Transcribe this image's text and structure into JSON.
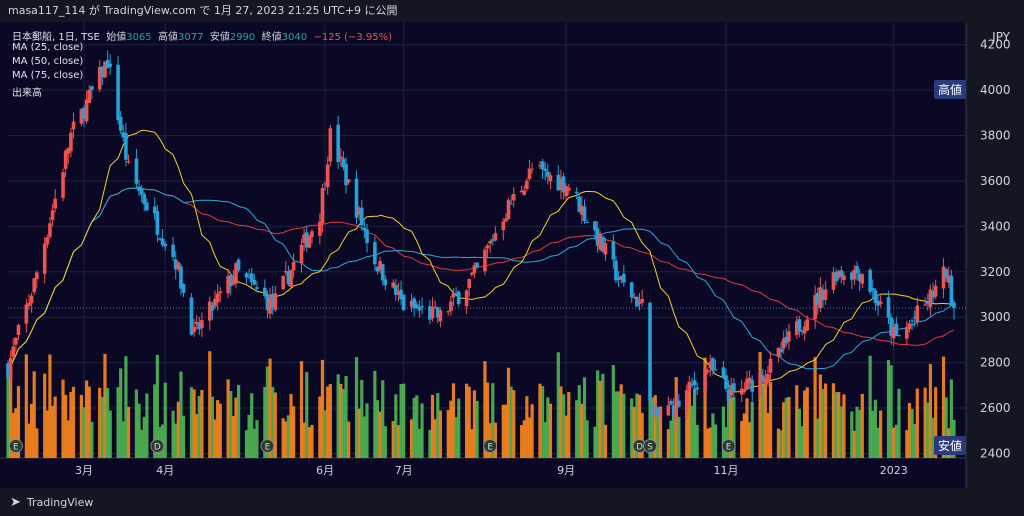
{
  "header": {
    "text": "masa117_114 が TradingView.com で 1月 27, 2023 21:25 UTC+9 に公開"
  },
  "legend": {
    "symbol": "日本郵船, 1日, TSE",
    "open_label": "始値",
    "open_value": "3065",
    "high_label": "高値",
    "high_value": "3077",
    "low_label": "安値",
    "low_value": "2990",
    "close_label": "終値",
    "close_value": "3040",
    "change": "−125 (−3.95%)",
    "ma25": "MA (25, close)",
    "ma50": "MA (50, close)",
    "ma75": "MA (75, close)",
    "volume": "出来高"
  },
  "axis": {
    "currency": "JPY"
  },
  "tags": {
    "high": "高値",
    "low": "安値"
  },
  "footer": {
    "brand": "TradingView"
  },
  "colors": {
    "up": "#ef5350",
    "down": "#26a0d8",
    "vol_up": "#f0821e",
    "vol_down": "#4caf50",
    "ma25": "#f2d024",
    "ma50": "#2ea8d8",
    "ma75": "#e03a3a"
  },
  "chart_data": {
    "type": "candlestick",
    "ylim": [
      2380,
      4300
    ],
    "y_ticks": [
      2400,
      2600,
      2800,
      3000,
      3200,
      3400,
      3600,
      3800,
      4000,
      4200
    ],
    "x_labels": [
      "3月",
      "4月",
      "6月",
      "7月",
      "9月",
      "11月",
      "2023"
    ],
    "series": [
      {
        "name": "MA (25, close)"
      },
      {
        "name": "MA (50, close)"
      },
      {
        "name": "MA (75, close)"
      },
      {
        "name": "出来高"
      }
    ],
    "last": {
      "open": 3065,
      "high": 3077,
      "low": 2990,
      "close": 3040,
      "change": -125,
      "change_pct": -3.95
    },
    "key_closes": [
      {
        "date": "2022-01-31",
        "close": 2780
      },
      {
        "date": "2022-02-10",
        "close": 3150
      },
      {
        "date": "2022-02-24",
        "close": 3800
      },
      {
        "date": "2022-03-10",
        "close": 4130
      },
      {
        "date": "2022-03-18",
        "close": 3650
      },
      {
        "date": "2022-04-05",
        "close": 3250
      },
      {
        "date": "2022-04-12",
        "close": 2920
      },
      {
        "date": "2022-04-28",
        "close": 3200
      },
      {
        "date": "2022-05-12",
        "close": 3050
      },
      {
        "date": "2022-05-30",
        "close": 3460
      },
      {
        "date": "2022-06-03",
        "close": 3800
      },
      {
        "date": "2022-06-10",
        "close": 3580
      },
      {
        "date": "2022-06-20",
        "close": 3250
      },
      {
        "date": "2022-07-01",
        "close": 3050
      },
      {
        "date": "2022-07-15",
        "close": 3000
      },
      {
        "date": "2022-07-29",
        "close": 3200
      },
      {
        "date": "2022-08-08",
        "close": 3450
      },
      {
        "date": "2022-08-19",
        "close": 3650
      },
      {
        "date": "2022-09-02",
        "close": 3580
      },
      {
        "date": "2022-09-13",
        "close": 3350
      },
      {
        "date": "2022-09-22",
        "close": 3150
      },
      {
        "date": "2022-09-30",
        "close": 3050
      },
      {
        "date": "2022-10-04",
        "close": 2550
      },
      {
        "date": "2022-10-14",
        "close": 2620
      },
      {
        "date": "2022-10-25",
        "close": 2780
      },
      {
        "date": "2022-11-04",
        "close": 2650
      },
      {
        "date": "2022-11-18",
        "close": 2780
      },
      {
        "date": "2022-12-01",
        "close": 3000
      },
      {
        "date": "2022-12-13",
        "close": 3200
      },
      {
        "date": "2022-12-23",
        "close": 3200
      },
      {
        "date": "2023-01-05",
        "close": 2900
      },
      {
        "date": "2023-01-16",
        "close": 3050
      },
      {
        "date": "2023-01-24",
        "close": 3200
      },
      {
        "date": "2023-01-27",
        "close": 3040
      }
    ]
  }
}
